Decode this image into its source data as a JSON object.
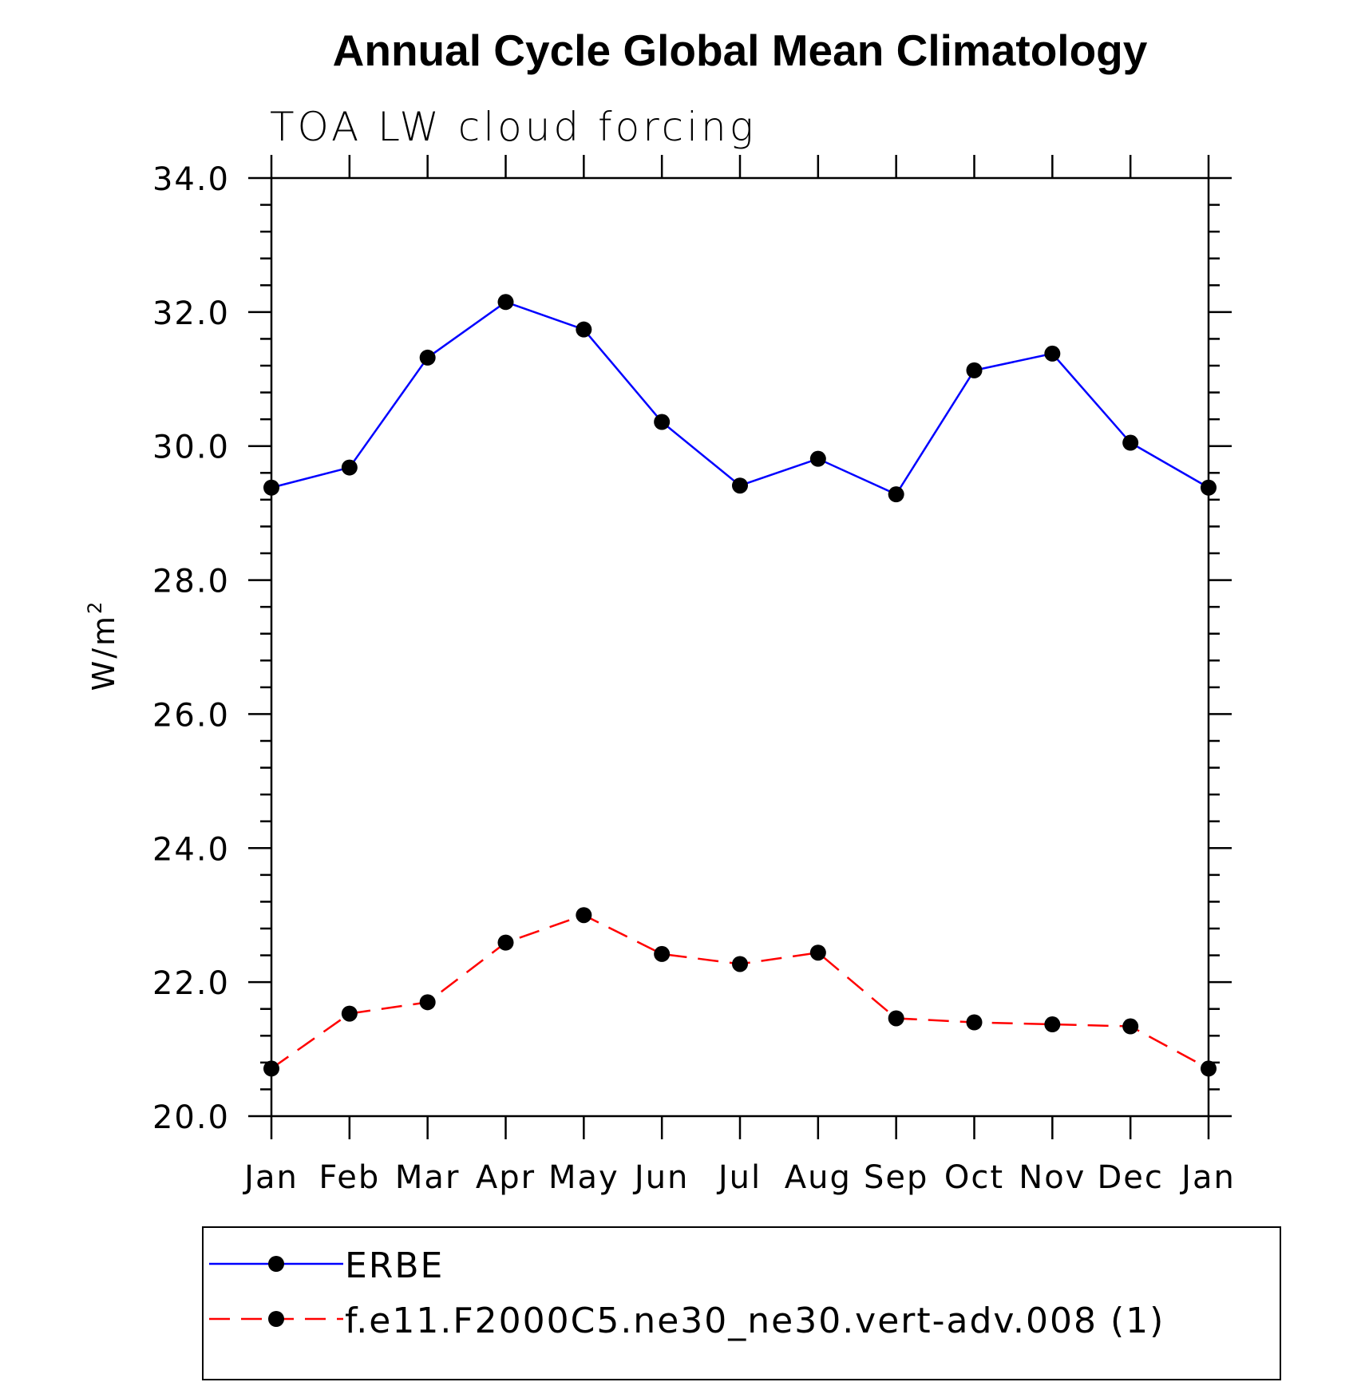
{
  "chart_data": {
    "type": "line",
    "title": "Annual Cycle Global Mean Climatology",
    "subtitle": "TOA LW cloud forcing",
    "ylabel": "W/m",
    "ylabel_superscript": "2",
    "categories": [
      "Jan",
      "Feb",
      "Mar",
      "Apr",
      "May",
      "Jun",
      "Jul",
      "Aug",
      "Sep",
      "Oct",
      "Nov",
      "Dec",
      "Jan"
    ],
    "ylim": [
      20.0,
      34.0
    ],
    "yticks": [
      "20.0",
      "22.0",
      "24.0",
      "26.0",
      "28.0",
      "30.0",
      "32.0",
      "34.0"
    ],
    "grid": false,
    "legend_position": "bottom",
    "series": [
      {
        "name": "ERBE",
        "color": "#0000ff",
        "dash": "solid",
        "marker": "filled-circle",
        "values": [
          29.38,
          29.68,
          31.32,
          32.15,
          31.74,
          30.36,
          29.41,
          29.81,
          29.28,
          31.13,
          31.38,
          30.05,
          29.38
        ]
      },
      {
        "name": "f.e11.F2000C5.ne30_ne30.vert-adv.008 (1)",
        "color": "#ff0000",
        "dash": "dashed",
        "marker": "filled-circle",
        "values": [
          20.71,
          21.53,
          21.7,
          22.59,
          23.0,
          22.42,
          22.27,
          22.44,
          21.46,
          21.4,
          21.37,
          21.34,
          20.71
        ]
      }
    ]
  }
}
